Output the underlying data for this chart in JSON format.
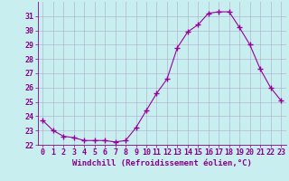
{
  "x": [
    0,
    1,
    2,
    3,
    4,
    5,
    6,
    7,
    8,
    9,
    10,
    11,
    12,
    13,
    14,
    15,
    16,
    17,
    18,
    19,
    20,
    21,
    22,
    23
  ],
  "y": [
    23.7,
    23.0,
    22.6,
    22.5,
    22.3,
    22.3,
    22.3,
    22.2,
    22.3,
    23.2,
    24.4,
    25.6,
    26.6,
    28.8,
    29.9,
    30.4,
    31.2,
    31.3,
    31.3,
    30.2,
    29.0,
    27.3,
    26.0,
    25.1
  ],
  "line_color": "#990099",
  "marker": "+",
  "marker_size": 4,
  "bg_color": "#c8eef0",
  "grid_color": "#aaaacc",
  "xlabel": "Windchill (Refroidissement éolien,°C)",
  "xlabel_fontsize": 6.5,
  "ylim": [
    22,
    32
  ],
  "xlim": [
    -0.5,
    23.5
  ],
  "yticks": [
    22,
    23,
    24,
    25,
    26,
    27,
    28,
    29,
    30,
    31
  ],
  "xticks": [
    0,
    1,
    2,
    3,
    4,
    5,
    6,
    7,
    8,
    9,
    10,
    11,
    12,
    13,
    14,
    15,
    16,
    17,
    18,
    19,
    20,
    21,
    22,
    23
  ],
  "tick_fontsize": 6,
  "tick_color": "#880088",
  "label_color": "#880088",
  "spine_color": "#880088"
}
